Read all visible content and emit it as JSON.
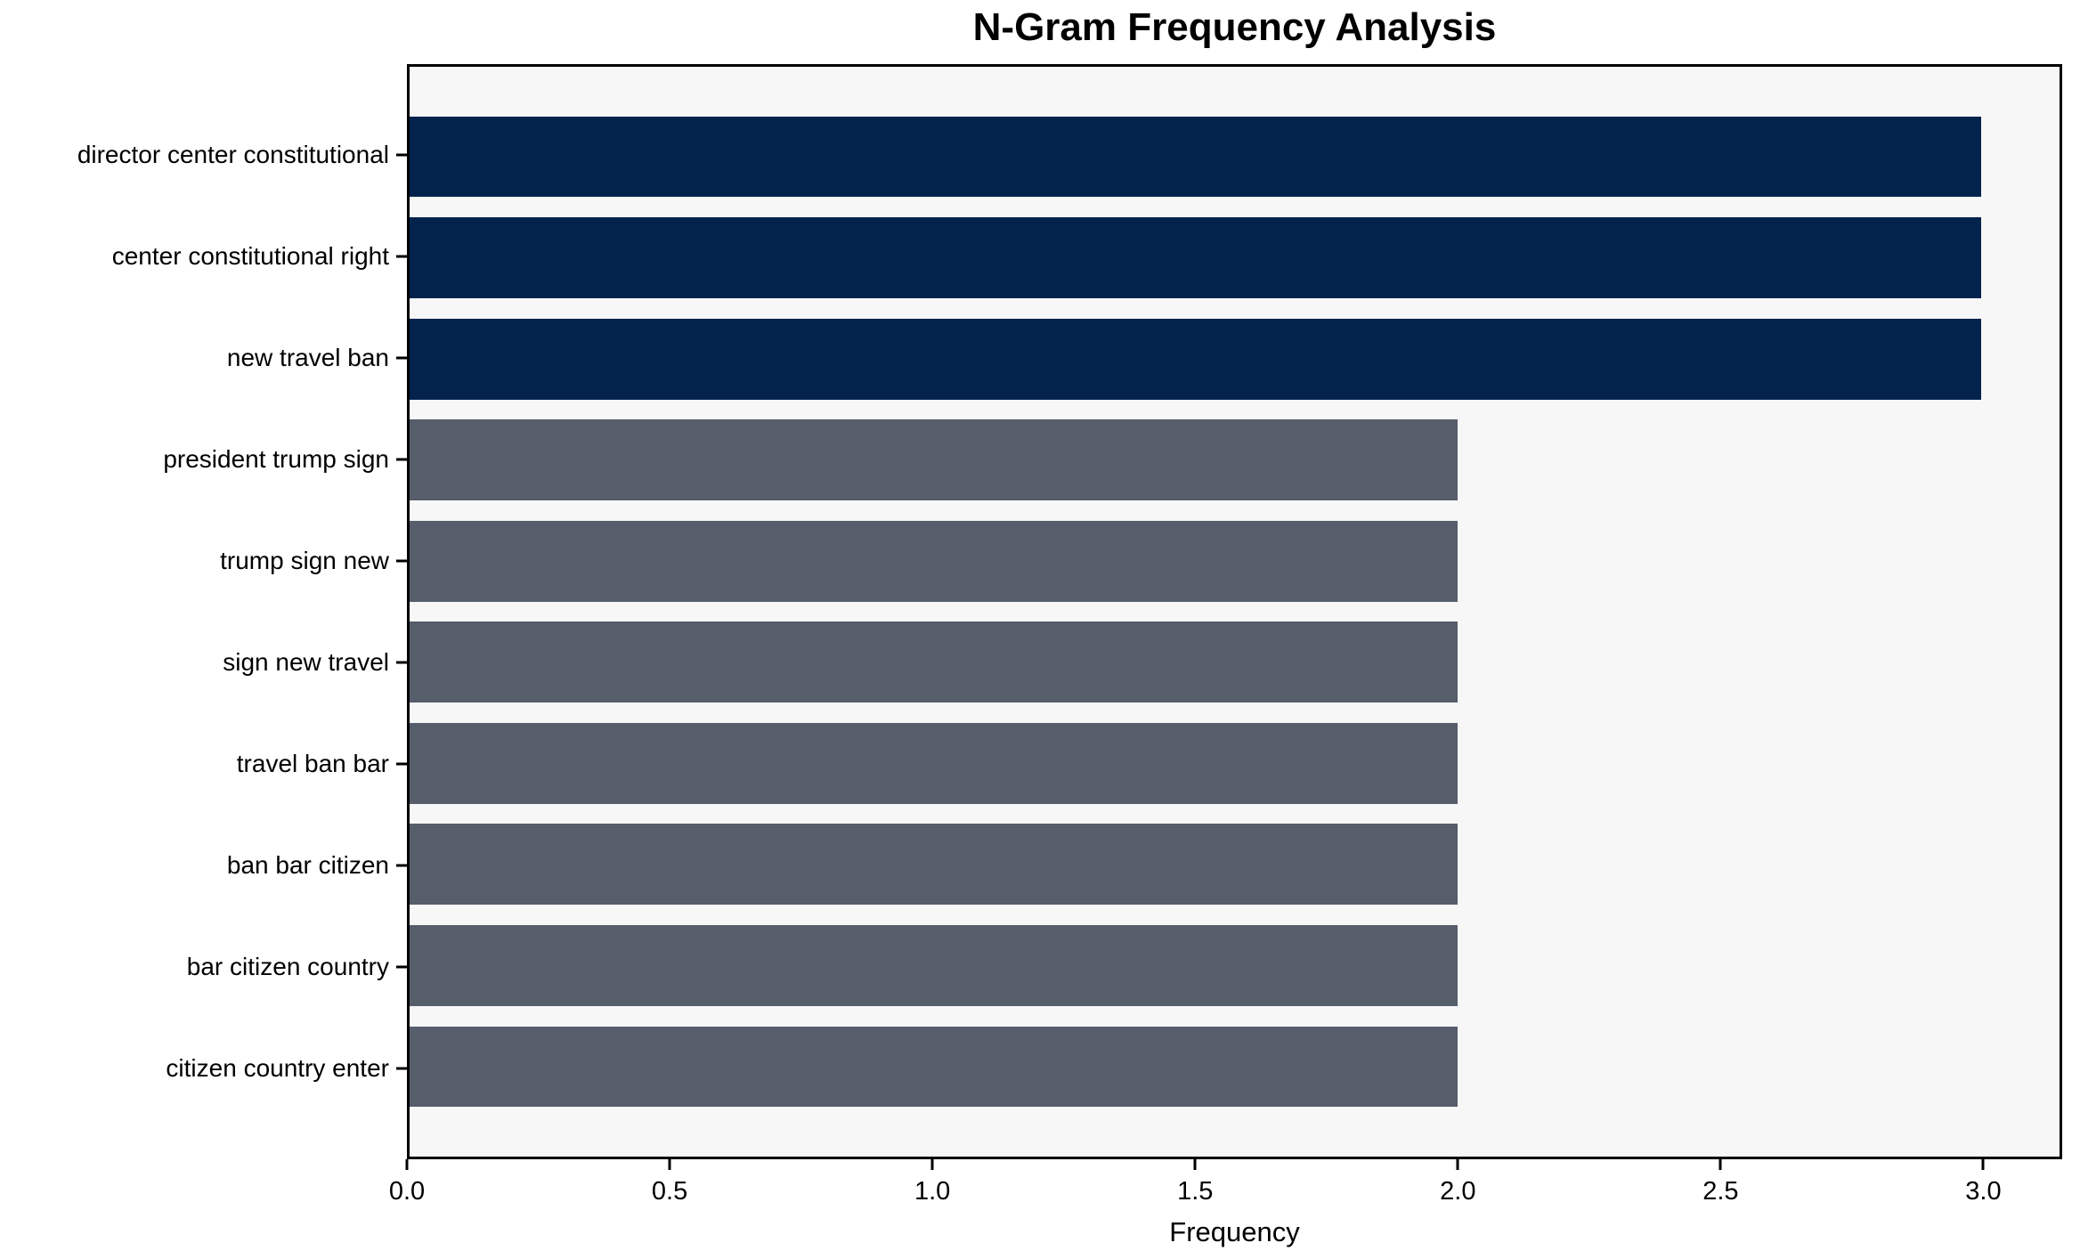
{
  "figure": {
    "background_color": "#ffffff",
    "plot_background_color": "#f7f7f7",
    "axis_color": "#000000"
  },
  "chart_data": {
    "type": "bar",
    "orientation": "horizontal",
    "title": "N-Gram Frequency Analysis",
    "xlabel": "Frequency",
    "ylabel": "",
    "grid": false,
    "legend": "none",
    "categories": [
      "director center constitutional",
      "center constitutional right",
      "new travel ban",
      "president trump sign",
      "trump sign new",
      "sign new travel",
      "travel ban bar",
      "ban bar citizen",
      "bar citizen country",
      "citizen country enter"
    ],
    "values": [
      3,
      3,
      3,
      2,
      2,
      2,
      2,
      2,
      2,
      2
    ],
    "bar_colors": [
      "#03234d",
      "#03234d",
      "#03234d",
      "#565d6b",
      "#565d6b",
      "#565d6b",
      "#565d6b",
      "#565d6b",
      "#565d6b",
      "#565d6b"
    ],
    "xlim": [
      0,
      3.15
    ],
    "xticks": [
      0.0,
      0.5,
      1.0,
      1.5,
      2.0,
      2.5,
      3.0
    ],
    "xtick_labels": [
      "0.0",
      "0.5",
      "1.0",
      "1.5",
      "2.0",
      "2.5",
      "3.0"
    ]
  }
}
